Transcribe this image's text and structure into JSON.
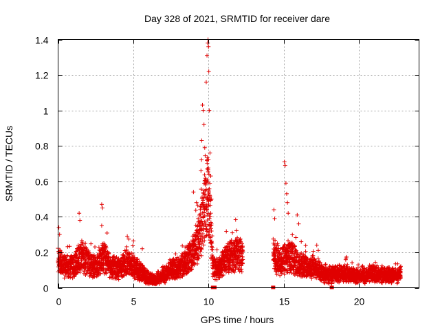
{
  "chart_data": {
    "type": "scatter",
    "title": "Day 328 of 2021, SRMTID for receiver dare",
    "xlabel": "GPS time / hours",
    "ylabel": "SRMTID / TECUs",
    "xlim": [
      0,
      24
    ],
    "ylim": [
      0,
      1.4
    ],
    "xticks": [
      0,
      5,
      10,
      15,
      20
    ],
    "xtick_labels": [
      "0",
      "5",
      "10",
      "15",
      "20"
    ],
    "yticks": [
      0,
      0.2,
      0.4,
      0.6,
      0.8,
      1.0,
      1.2,
      1.4
    ],
    "ytick_labels": [
      "0",
      "0.2",
      "0.4",
      "0.6",
      "0.8",
      "1",
      "1.2",
      "1.4"
    ],
    "grid": true,
    "marker": "+",
    "color": "#e00000",
    "series": [
      {
        "name": "SRMTID",
        "envelope": {
          "x": [
            0.0,
            0.3,
            0.6,
            1.0,
            1.5,
            2.0,
            2.5,
            3.0,
            3.5,
            4.0,
            4.5,
            5.0,
            5.5,
            6.0,
            6.3,
            6.6,
            7.0,
            7.5,
            8.0,
            8.5,
            9.0,
            9.3,
            9.6,
            9.8,
            10.0,
            10.3,
            10.6,
            11.0,
            11.5,
            12.0,
            12.3,
            14.3,
            14.5,
            14.8,
            15.0,
            15.3,
            15.6,
            16.0,
            16.5,
            17.0,
            17.5,
            18.0,
            18.5,
            19.0,
            19.5,
            20.0,
            20.5,
            21.0,
            21.5,
            22.0,
            22.5,
            22.8
          ],
          "y": [
            0.16,
            0.13,
            0.12,
            0.12,
            0.18,
            0.14,
            0.12,
            0.17,
            0.12,
            0.11,
            0.14,
            0.12,
            0.09,
            0.05,
            0.04,
            0.05,
            0.07,
            0.1,
            0.11,
            0.14,
            0.2,
            0.28,
            0.35,
            0.45,
            0.55,
            0.12,
            0.1,
            0.14,
            0.18,
            0.2,
            0.17,
            0.2,
            0.16,
            0.14,
            0.16,
            0.18,
            0.17,
            0.13,
            0.11,
            0.12,
            0.09,
            0.07,
            0.08,
            0.08,
            0.07,
            0.07,
            0.07,
            0.08,
            0.07,
            0.07,
            0.07,
            0.08
          ]
        },
        "outliers": [
          {
            "x": 0.05,
            "y": 0.34
          },
          {
            "x": 0.1,
            "y": 0.3
          },
          {
            "x": 1.4,
            "y": 0.42
          },
          {
            "x": 1.45,
            "y": 0.38
          },
          {
            "x": 2.9,
            "y": 0.47
          },
          {
            "x": 2.95,
            "y": 0.45
          },
          {
            "x": 2.9,
            "y": 0.35
          },
          {
            "x": 4.6,
            "y": 0.29
          },
          {
            "x": 5.6,
            "y": 0.22
          },
          {
            "x": 9.0,
            "y": 0.54
          },
          {
            "x": 9.2,
            "y": 0.48
          },
          {
            "x": 9.5,
            "y": 0.66
          },
          {
            "x": 9.55,
            "y": 0.83
          },
          {
            "x": 9.6,
            "y": 1.03
          },
          {
            "x": 9.65,
            "y": 1.0
          },
          {
            "x": 9.7,
            "y": 0.92
          },
          {
            "x": 9.75,
            "y": 0.79
          },
          {
            "x": 9.8,
            "y": 0.58
          },
          {
            "x": 9.85,
            "y": 1.16
          },
          {
            "x": 9.9,
            "y": 1.31
          },
          {
            "x": 9.95,
            "y": 1.38
          },
          {
            "x": 9.97,
            "y": 1.4
          },
          {
            "x": 10.0,
            "y": 1.36
          },
          {
            "x": 10.02,
            "y": 1.22
          },
          {
            "x": 10.05,
            "y": 1.0
          },
          {
            "x": 10.1,
            "y": 0.76
          },
          {
            "x": 10.15,
            "y": 0.63
          },
          {
            "x": 10.2,
            "y": 0.5
          },
          {
            "x": 14.35,
            "y": 0.44
          },
          {
            "x": 14.4,
            "y": 0.39
          },
          {
            "x": 15.05,
            "y": 0.71
          },
          {
            "x": 15.1,
            "y": 0.69
          },
          {
            "x": 15.15,
            "y": 0.59
          },
          {
            "x": 15.2,
            "y": 0.53
          },
          {
            "x": 15.25,
            "y": 0.48
          },
          {
            "x": 15.3,
            "y": 0.42
          },
          {
            "x": 15.9,
            "y": 0.41
          },
          {
            "x": 16.0,
            "y": 0.36
          },
          {
            "x": 17.2,
            "y": 0.24
          },
          {
            "x": 17.3,
            "y": 0.21
          }
        ],
        "gaps": [
          [
            12.3,
            14.3
          ]
        ],
        "gap_markers": [
          10.3,
          10.4,
          14.3,
          18.2
        ]
      }
    ]
  }
}
